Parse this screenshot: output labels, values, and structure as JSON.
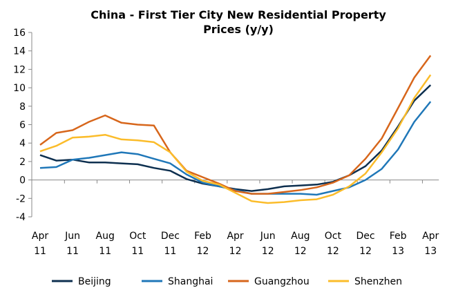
{
  "chart_data": {
    "type": "line",
    "title": "China - First Tier City New Residential Property Prices (y/y)",
    "title_lines": [
      "China - First Tier City New Residential Property",
      "Prices (y/y)"
    ],
    "xlabel": "",
    "ylabel": "",
    "ylim": [
      -4,
      16
    ],
    "yticks": [
      -4,
      -2,
      0,
      2,
      4,
      6,
      8,
      10,
      12,
      14,
      16
    ],
    "x": [
      "Apr 11",
      "May 11",
      "Jun 11",
      "Jul 11",
      "Aug 11",
      "Sep 11",
      "Oct 11",
      "Nov 11",
      "Dec 11",
      "Jan 12",
      "Feb 12",
      "Mar 12",
      "Apr 12",
      "May 12",
      "Jun 12",
      "Jul 12",
      "Aug 12",
      "Sep 12",
      "Oct 12",
      "Nov 12",
      "Dec 12",
      "Jan 13",
      "Feb 13",
      "Mar 13",
      "Apr 13"
    ],
    "xtick_labels": [
      [
        "Apr",
        "11"
      ],
      [
        "Jun",
        "11"
      ],
      [
        "Aug",
        "11"
      ],
      [
        "Oct",
        "11"
      ],
      [
        "Dec",
        "11"
      ],
      [
        "Feb",
        "12"
      ],
      [
        "Apr",
        "12"
      ],
      [
        "Jun",
        "12"
      ],
      [
        "Aug",
        "12"
      ],
      [
        "Oct",
        "12"
      ],
      [
        "Dec",
        "12"
      ],
      [
        "Feb",
        "13"
      ],
      [
        "Apr",
        "13"
      ]
    ],
    "grid": false,
    "legend_placement": "bottom",
    "series": [
      {
        "name": "Beijing",
        "color": "#0d2f4f",
        "values": [
          2.7,
          2.1,
          2.2,
          1.9,
          1.9,
          1.8,
          1.7,
          1.3,
          1.0,
          0.1,
          -0.4,
          -0.7,
          -1.0,
          -1.2,
          -1.0,
          -0.7,
          -0.6,
          -0.5,
          -0.2,
          0.5,
          1.5,
          3.2,
          5.8,
          8.6,
          10.3
        ]
      },
      {
        "name": "Shanghai",
        "color": "#1f77b8",
        "values": [
          1.3,
          1.4,
          2.2,
          2.4,
          2.7,
          3.0,
          2.8,
          2.3,
          1.8,
          0.6,
          -0.3,
          -0.7,
          -1.1,
          -1.5,
          -1.5,
          -1.5,
          -1.5,
          -1.6,
          -1.2,
          -0.8,
          0.0,
          1.2,
          3.3,
          6.3,
          8.5
        ]
      },
      {
        "name": "Guangzhou",
        "color": "#d7661b",
        "values": [
          3.8,
          5.1,
          5.4,
          6.3,
          7.0,
          6.2,
          6.0,
          5.9,
          3.0,
          1.0,
          0.3,
          -0.4,
          -1.2,
          -1.5,
          -1.5,
          -1.3,
          -1.1,
          -0.8,
          -0.3,
          0.5,
          2.3,
          4.5,
          7.8,
          11.1,
          13.5
        ]
      },
      {
        "name": "Shenzhen",
        "color": "#fbbc2a",
        "values": [
          3.1,
          3.7,
          4.6,
          4.7,
          4.9,
          4.4,
          4.3,
          4.1,
          3.0,
          0.9,
          -0.1,
          -0.5,
          -1.4,
          -2.3,
          -2.5,
          -2.4,
          -2.2,
          -2.1,
          -1.6,
          -0.7,
          0.7,
          3.0,
          5.6,
          8.9,
          11.4
        ]
      }
    ]
  }
}
